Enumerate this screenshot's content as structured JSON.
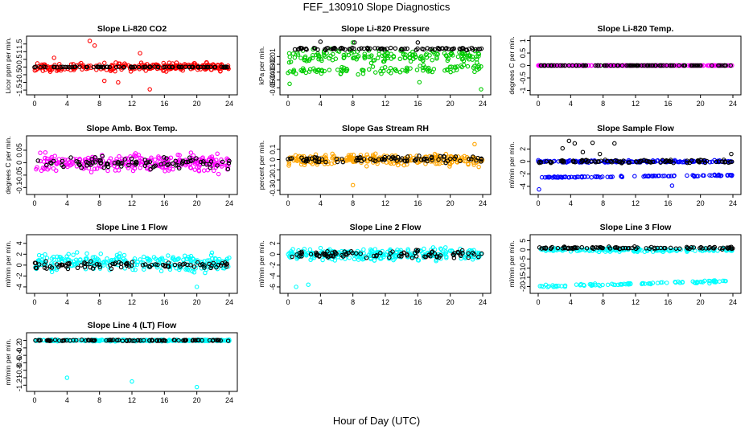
{
  "figure": {
    "title": "FEF_130910  Slope Diagnostics",
    "xlabel": "Hour of Day (UTC)"
  },
  "chart_data": [
    {
      "type": "scatter",
      "title": "Slope Li-820 CO2",
      "ylabel": "Licor ppm per min.",
      "xlim": [
        0,
        24
      ],
      "ylim": [
        -1.6,
        1.8
      ],
      "yticks": [
        -1.5,
        -1,
        -0.5,
        0,
        0.5,
        1,
        1.5
      ],
      "xticks": [
        0,
        4,
        8,
        12,
        16,
        20,
        24
      ],
      "series": [
        {
          "color": "#ff0000",
          "center": 0,
          "spread": 0.35,
          "outliers": [
            [
              6.8,
              1.7
            ],
            [
              7.4,
              1.4
            ],
            [
              10.3,
              -1.0
            ],
            [
              14.2,
              -1.45
            ],
            [
              2.4,
              0.6
            ],
            [
              13.0,
              0.9
            ],
            [
              8.6,
              -0.9
            ]
          ]
        },
        {
          "color": "#000000",
          "center": 0,
          "spread": 0.03
        }
      ]
    },
    {
      "type": "scatter",
      "title": "Slope Li-820 Pressure",
      "ylabel": "kPa per min.",
      "xlim": [
        0,
        24
      ],
      "ylim": [
        -0.055,
        0.012
      ],
      "yticks": [
        -0.05,
        -0.04,
        -0.03,
        -0.02,
        -0.01
      ],
      "xticks": [
        0,
        4,
        8,
        12,
        16,
        20,
        24
      ],
      "series": [
        {
          "color": "#00cc00",
          "center": -0.01,
          "spread": 0.012,
          "lower_band": -0.027,
          "outliers": [
            [
              0.2,
              -0.045
            ],
            [
              8.0,
              0.008
            ],
            [
              16.2,
              -0.043
            ],
            [
              23.8,
              -0.052
            ]
          ]
        },
        {
          "color": "#000000",
          "center": 0.0,
          "spread": 0.002,
          "outliers": [
            [
              4,
              0.009
            ],
            [
              8.2,
              0.008
            ],
            [
              16,
              0.008
            ]
          ]
        }
      ]
    },
    {
      "type": "scatter",
      "title": "Slope Li-820 Temp.",
      "ylabel": "degrees C per min.",
      "xlim": [
        0,
        24
      ],
      "ylim": [
        -1.05,
        1.05
      ],
      "yticks": [
        -1.0,
        -0.5,
        0.0,
        0.5,
        1.0
      ],
      "xticks": [
        0,
        4,
        8,
        12,
        16,
        20,
        24
      ],
      "series": [
        {
          "color": "#ff00ff",
          "center": 0,
          "spread": 0.0
        },
        {
          "color": "#000000",
          "center": 0,
          "spread": 0.0
        }
      ]
    },
    {
      "type": "scatter",
      "title": "Slope Amb. Box Temp.",
      "ylabel": "degrees C per min.",
      "xlim": [
        0,
        24
      ],
      "ylim": [
        -0.115,
        0.095
      ],
      "yticks": [
        -0.1,
        -0.05,
        0.0,
        0.05
      ],
      "xticks": [
        0,
        4,
        8,
        12,
        16,
        20,
        24
      ],
      "series": [
        {
          "color": "#ff00ff",
          "center": 0,
          "spread": 0.05
        },
        {
          "color": "#000000",
          "center": 0,
          "spread": 0.035
        }
      ]
    },
    {
      "type": "scatter",
      "title": "Slope Gas Stream RH",
      "ylabel": "percent per min.",
      "xlim": [
        0,
        24
      ],
      "ylim": [
        -0.31,
        0.2
      ],
      "yticks": [
        -0.3,
        -0.2,
        -0.1,
        0.0,
        0.1
      ],
      "xticks": [
        0,
        4,
        8,
        12,
        16,
        20,
        24
      ],
      "series": [
        {
          "color": "#ffa500",
          "center": 0,
          "spread": 0.08,
          "outliers": [
            [
              8,
              -0.25
            ],
            [
              23,
              0.15
            ]
          ]
        },
        {
          "color": "#000000",
          "center": 0,
          "spread": 0.05
        }
      ]
    },
    {
      "type": "scatter",
      "title": "Slope Sample Flow",
      "ylabel": "ml/min per min.",
      "xlim": [
        0,
        24
      ],
      "ylim": [
        -4.8,
        3.6
      ],
      "yticks": [
        -4,
        -2,
        0,
        2
      ],
      "xticks": [
        0,
        4,
        8,
        12,
        16,
        20,
        24
      ],
      "series": [
        {
          "color": "#0000ff",
          "center": 0,
          "spread": 0.25,
          "lower_band": -2.4,
          "outliers": [
            [
              0.1,
              -4.5
            ],
            [
              16.5,
              -3.9
            ]
          ]
        },
        {
          "color": "#000000",
          "center": 0,
          "spread": 0.4,
          "outliers": [
            [
              3.0,
              2.1
            ],
            [
              3.8,
              3.3
            ],
            [
              4.5,
              2.9
            ],
            [
              5.5,
              1.5
            ],
            [
              6.7,
              3.0
            ],
            [
              7.6,
              1.2
            ],
            [
              9.4,
              2.9
            ],
            [
              23.8,
              1.2
            ]
          ]
        }
      ]
    },
    {
      "type": "scatter",
      "title": "Slope Line 1 Flow",
      "ylabel": "ml/min per min.",
      "xlim": [
        0,
        24
      ],
      "ylim": [
        -4.6,
        5.0
      ],
      "yticks": [
        -4,
        -2,
        0,
        2,
        4
      ],
      "xticks": [
        0,
        4,
        8,
        12,
        16,
        20,
        24
      ],
      "series": [
        {
          "color": "#00ffff",
          "center": 0.5,
          "spread": 2.2,
          "outliers": [
            [
              20,
              -4.0
            ]
          ]
        },
        {
          "color": "#000000",
          "center": 0,
          "spread": 1.0
        }
      ]
    },
    {
      "type": "scatter",
      "title": "Slope Line 2 Flow",
      "ylabel": "ml/min per min.",
      "xlim": [
        0,
        24
      ],
      "ylim": [
        -6.6,
        3.0
      ],
      "yticks": [
        -6,
        -4,
        -2,
        0,
        2
      ],
      "xticks": [
        0,
        4,
        8,
        12,
        16,
        20,
        24
      ],
      "series": [
        {
          "color": "#00ffff",
          "center": 0,
          "spread": 1.6,
          "outliers": [
            [
              1.0,
              -6.0
            ],
            [
              2.5,
              -5.6
            ]
          ]
        },
        {
          "color": "#000000",
          "center": 0,
          "spread": 1.1
        }
      ]
    },
    {
      "type": "scatter",
      "title": "Slope Line 3 Flow",
      "ylabel": "ml/min per min.",
      "xlim": [
        0,
        24
      ],
      "ylim": [
        -22,
        6.5
      ],
      "yticks": [
        -20,
        -15,
        -10,
        -5,
        0,
        5
      ],
      "xticks": [
        0,
        4,
        8,
        12,
        16,
        20,
        24
      ],
      "series": [
        {
          "color": "#00ffff",
          "center": 0,
          "spread": 1.5,
          "lower_band": -18.5
        },
        {
          "color": "#000000",
          "center": 1,
          "spread": 1.0
        }
      ]
    },
    {
      "type": "scatter",
      "title": "Slope Line 4 (LT) Flow",
      "ylabel": "ml/min per min.",
      "xlim": [
        0,
        24
      ],
      "ylim": [
        -1.28,
        0.12
      ],
      "yticks": [
        -1.2,
        -1.0,
        -0.8,
        -0.6,
        -0.4,
        -0.2,
        0.0
      ],
      "xticks": [
        0,
        4,
        8,
        12,
        16,
        20,
        24
      ],
      "series": [
        {
          "color": "#00ffff",
          "center": 0,
          "spread": 0.03,
          "outliers": [
            [
              4,
              -1.0
            ],
            [
              12,
              -1.1
            ],
            [
              20,
              -1.25
            ]
          ]
        },
        {
          "color": "#000000",
          "center": 0,
          "spread": 0.02
        }
      ]
    }
  ]
}
